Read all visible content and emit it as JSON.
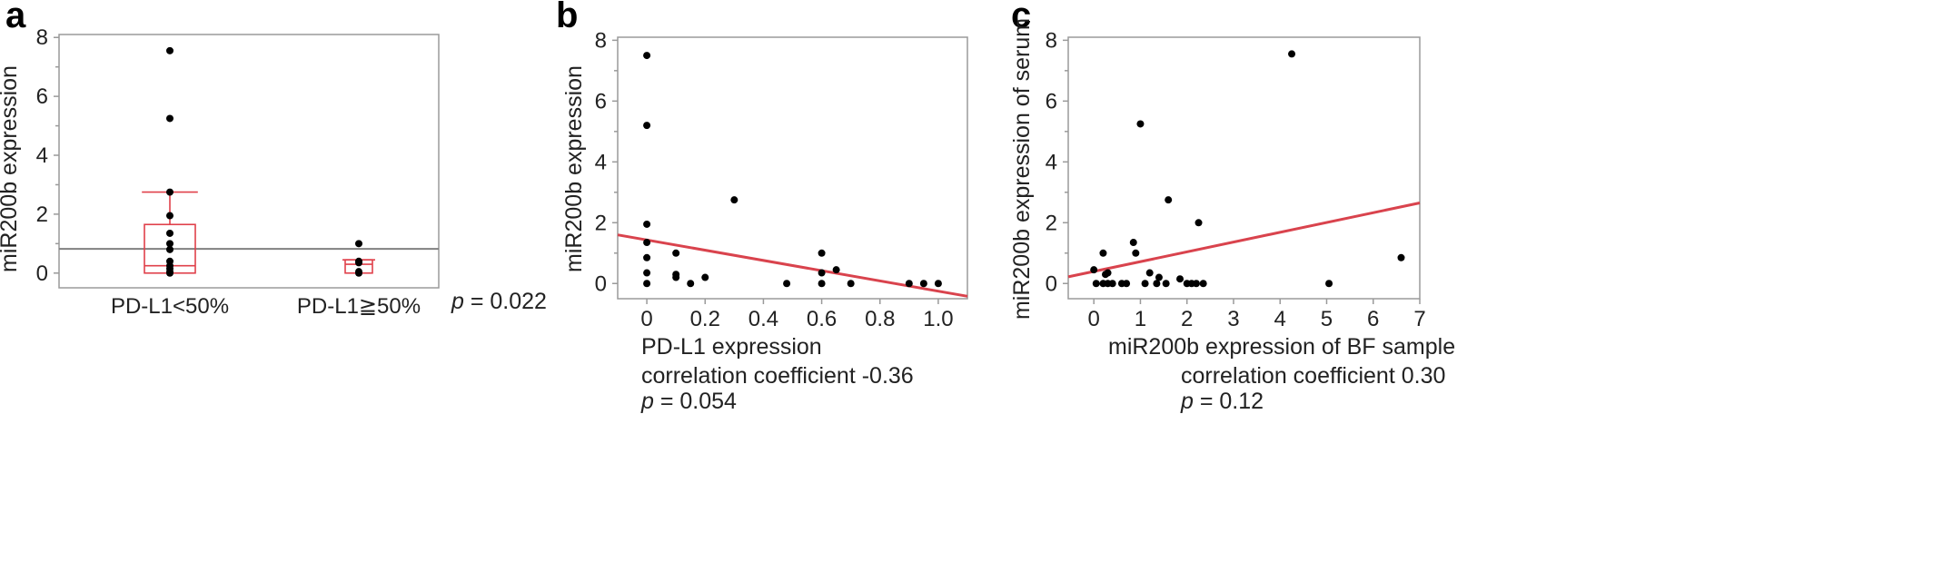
{
  "chart_data": [
    {
      "panel": "a",
      "type": "box",
      "ylabel": "miR200b expression",
      "ylim": [
        -0.5,
        8.1
      ],
      "yticks": [
        0,
        2,
        4,
        6,
        8
      ],
      "categories": [
        "PD-L1<50%",
        "PD-L1≧50%"
      ],
      "groups": [
        {
          "name": "PD-L1<50%",
          "points": [
            7.55,
            5.25,
            2.75,
            1.95,
            1.35,
            1.0,
            0.8,
            0.4,
            0.25,
            0.15,
            0.05,
            0.0
          ],
          "box": {
            "q1": 0.0,
            "median": 0.25,
            "q3": 1.65,
            "whisker_low": 0.0,
            "whisker_high": 2.75
          }
        },
        {
          "name": "PD-L1≧50%",
          "points": [
            1.0,
            0.4,
            0.35,
            0.05,
            0.0
          ],
          "box": {
            "q1": 0.0,
            "median": 0.3,
            "q3": 0.45,
            "whisker_low": 0.0,
            "whisker_high": 0.45
          }
        }
      ],
      "reference_line": 0.82,
      "p_label": "p",
      "p_value": " = 0.022"
    },
    {
      "panel": "b",
      "type": "scatter",
      "xlabel": "PD-L1 expression",
      "ylabel": "miR200b expression",
      "xlim": [
        -0.1,
        1.1
      ],
      "ylim": [
        -0.5,
        8.1
      ],
      "xticks": [
        "0",
        "0.2",
        "0.4",
        "0.6",
        "0.8",
        "1.0"
      ],
      "xtick_values": [
        0,
        0.2,
        0.4,
        0.6,
        0.8,
        1.0
      ],
      "yticks": [
        0,
        2,
        4,
        6,
        8
      ],
      "points": [
        [
          0,
          7.5
        ],
        [
          0,
          5.2
        ],
        [
          0,
          1.95
        ],
        [
          0,
          1.35
        ],
        [
          0,
          0.85
        ],
        [
          0,
          0.35
        ],
        [
          0,
          0.0
        ],
        [
          0.1,
          1.0
        ],
        [
          0.1,
          0.3
        ],
        [
          0.1,
          0.2
        ],
        [
          0.15,
          0.0
        ],
        [
          0.2,
          0.2
        ],
        [
          0.3,
          2.75
        ],
        [
          0.48,
          0.0
        ],
        [
          0.6,
          1.0
        ],
        [
          0.6,
          0.35
        ],
        [
          0.6,
          0.0
        ],
        [
          0.65,
          0.45
        ],
        [
          0.7,
          0.0
        ],
        [
          0.9,
          0.0
        ],
        [
          0.95,
          0.0
        ],
        [
          1.0,
          0.0
        ]
      ],
      "fit_line": {
        "x": [
          -0.1,
          1.1
        ],
        "y": [
          1.6,
          -0.42
        ]
      },
      "correlation_text": "correlation coefficient -0.36",
      "p_label": "p",
      "p_value": " = 0.054"
    },
    {
      "panel": "c",
      "type": "scatter",
      "xlabel": "miR200b expression of BF sample",
      "ylabel": "miR200b expression of serum",
      "xlim": [
        -0.55,
        7.0
      ],
      "ylim": [
        -0.5,
        8.1
      ],
      "xticks": [
        "0",
        "1",
        "2",
        "3",
        "4",
        "5",
        "6",
        "7"
      ],
      "xtick_values": [
        0,
        1,
        2,
        3,
        4,
        5,
        6,
        7
      ],
      "yticks": [
        0,
        2,
        4,
        6,
        8
      ],
      "points": [
        [
          0.0,
          0.45
        ],
        [
          0.05,
          0.0
        ],
        [
          0.2,
          1.0
        ],
        [
          0.2,
          0.0
        ],
        [
          0.25,
          0.3
        ],
        [
          0.3,
          0.35
        ],
        [
          0.3,
          0.0
        ],
        [
          0.4,
          0.0
        ],
        [
          0.6,
          0.0
        ],
        [
          0.7,
          0.0
        ],
        [
          0.85,
          1.35
        ],
        [
          0.9,
          1.0
        ],
        [
          1.0,
          5.25
        ],
        [
          1.1,
          0.0
        ],
        [
          1.2,
          0.35
        ],
        [
          1.35,
          0.0
        ],
        [
          1.4,
          0.2
        ],
        [
          1.55,
          0.0
        ],
        [
          1.6,
          2.75
        ],
        [
          1.85,
          0.15
        ],
        [
          2.0,
          0.0
        ],
        [
          2.1,
          0.0
        ],
        [
          2.2,
          0.0
        ],
        [
          2.25,
          2.0
        ],
        [
          2.35,
          0.0
        ],
        [
          4.25,
          7.55
        ],
        [
          5.05,
          0.0
        ],
        [
          6.6,
          0.85
        ]
      ],
      "fit_line": {
        "x": [
          -0.55,
          7.0
        ],
        "y": [
          0.22,
          2.65
        ]
      },
      "correlation_text": "correlation coefficient 0.30",
      "p_label": "p",
      "p_value": " = 0.12"
    }
  ],
  "colors": {
    "points": "#000000",
    "fit_line": "#d9434d",
    "box": "#e0404a",
    "reference_line": "#808080",
    "frame": "#9a9a9a"
  },
  "panel_letters": [
    "a",
    "b",
    "c"
  ]
}
